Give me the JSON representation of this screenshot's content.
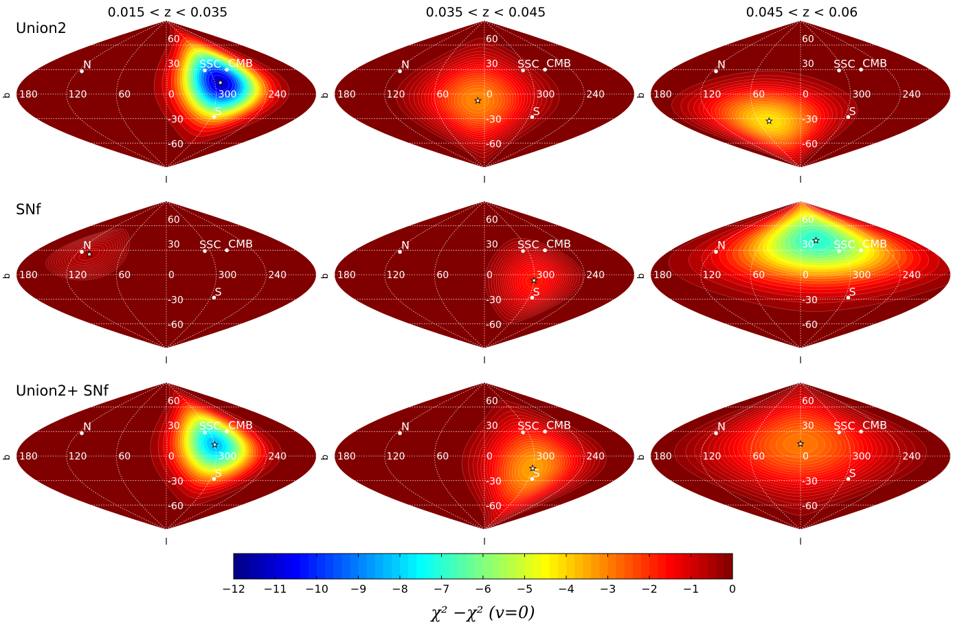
{
  "columns": [
    "0.015 <  z <  0.035",
    "0.035 <  z <  0.045",
    "0.045 <  z <  0.06"
  ],
  "rows": [
    "Union2",
    "SNf",
    "Union2+ SNf"
  ],
  "axis_labels": {
    "y": "b",
    "x": "l"
  },
  "grid": {
    "lon_labels": [
      "180",
      "120",
      "60",
      "0",
      "300",
      "240"
    ],
    "lat_labels": [
      "60",
      "30",
      "-30",
      "-60"
    ]
  },
  "markers": [
    "N",
    "S",
    "SSC",
    "CMB"
  ],
  "colorbar": {
    "min": -12,
    "max": 0,
    "tick_labels": [
      "−12",
      "−11",
      "−10",
      "−9",
      "−8",
      "−7",
      "−6",
      "−5",
      "−4",
      "−3",
      "−2",
      "−1",
      "0"
    ],
    "label": "χ² −χ² (v=0)",
    "colormap": "jet"
  },
  "chart_data": {
    "type": "heatmap",
    "projection": "sinusoidal",
    "coordinates": "galactic",
    "title": "",
    "xlabel": "l",
    "ylabel": "b",
    "lon_range": [
      -180,
      180
    ],
    "lat_range": [
      -90,
      90
    ],
    "value_range": [
      -12,
      0
    ],
    "named_points": [
      {
        "name": "N",
        "l": 115,
        "b": 28
      },
      {
        "name": "S",
        "l": 295,
        "b": -28
      },
      {
        "name": "SSC",
        "l": 307,
        "b": 29
      },
      {
        "name": "CMB",
        "l": 276,
        "b": 30
      }
    ],
    "panels": [
      {
        "row": "Union2",
        "column": "0.015 <  z <  0.035",
        "best_fit": {
          "l": 293,
          "b": 14
        },
        "min_value": -11.5,
        "sigma_l": 33,
        "sigma_b": 30
      },
      {
        "row": "Union2",
        "column": "0.035 <  z <  0.045",
        "best_fit": {
          "l": 8,
          "b": -8
        },
        "min_value": -3.2,
        "sigma_l": 45,
        "sigma_b": 35
      },
      {
        "row": "Union2",
        "column": "0.045 <  z <  0.06",
        "best_fit": {
          "l": 45,
          "b": -33
        },
        "min_value": -4.3,
        "sigma_l": 55,
        "sigma_b": 28
      },
      {
        "row": "SNf",
        "column": "0.015 <  z <  0.035",
        "best_fit": {
          "l": 102,
          "b": 25
        },
        "min_value": -0.6,
        "sigma_l": 40,
        "sigma_b": 25
      },
      {
        "row": "SNf",
        "column": "0.035 <  z <  0.045",
        "best_fit": {
          "l": 300,
          "b": -7
        },
        "min_value": -1.8,
        "sigma_l": 32,
        "sigma_b": 28
      },
      {
        "row": "SNf",
        "column": "0.045 <  z <  0.06",
        "best_fit": {
          "l": 335,
          "b": 42
        },
        "min_value": -7.2,
        "sigma_l": 80,
        "sigma_b": 35
      },
      {
        "row": "Union2+ SNf",
        "column": "0.015 <  z <  0.035",
        "best_fit": {
          "l": 300,
          "b": 14
        },
        "min_value": -8.5,
        "sigma_l": 32,
        "sigma_b": 30
      },
      {
        "row": "Union2+ SNf",
        "column": "0.035 <  z <  0.045",
        "best_fit": {
          "l": 300,
          "b": -15
        },
        "min_value": -3.5,
        "sigma_l": 40,
        "sigma_b": 38
      },
      {
        "row": "Union2+ SNf",
        "column": "0.045 <  z <  0.06",
        "best_fit": {
          "l": 0,
          "b": 15
        },
        "min_value": -3.0,
        "sigma_l": 70,
        "sigma_b": 40
      }
    ]
  }
}
